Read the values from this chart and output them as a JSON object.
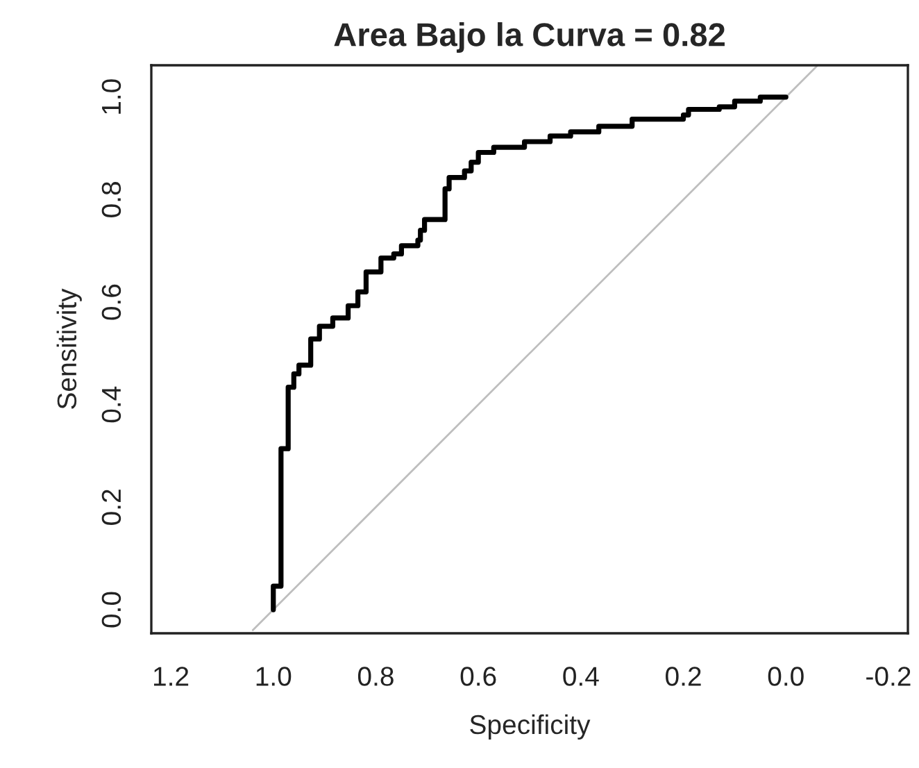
{
  "chart_data": {
    "type": "line",
    "title": "Area Bajo la Curva = 0.82",
    "xlabel": "Specificity",
    "ylabel": "Sensitivity",
    "xlim": [
      1.238,
      -0.238
    ],
    "xticks": [
      1.2,
      {
        "value": 1,
        "label": "1.0"
      },
      0.8,
      0.6,
      0.4,
      0.2,
      {
        "value": 0,
        "label": "0.0"
      },
      -0.2
    ],
    "ylim": [
      -0.046,
      1.062
    ],
    "yticks": [
      {
        "value": 0,
        "label": "0.0"
      },
      0.2,
      0.4,
      0.6,
      0.8,
      {
        "value": 1,
        "label": "1.0"
      }
    ],
    "grid": false,
    "legend": false,
    "series": [
      {
        "type": "line",
        "color": "#bebebe",
        "x": [
          1.04,
          -0.06
        ],
        "values": [
          -0.04,
          1.06
        ]
      },
      {
        "color": "#000000",
        "x": [
          1.0,
          1.0,
          0.985,
          0.985,
          0.971,
          0.971,
          0.96,
          0.96,
          0.95,
          0.95,
          0.927,
          0.927,
          0.91,
          0.91,
          0.884,
          0.884,
          0.854,
          0.854,
          0.835,
          0.835,
          0.819,
          0.819,
          0.79,
          0.79,
          0.765,
          0.765,
          0.75,
          0.75,
          0.718,
          0.718,
          0.713,
          0.713,
          0.705,
          0.705,
          0.665,
          0.665,
          0.657,
          0.657,
          0.627,
          0.627,
          0.614,
          0.614,
          0.6,
          0.6,
          0.57,
          0.57,
          0.51,
          0.51,
          0.46,
          0.46,
          0.42,
          0.42,
          0.365,
          0.365,
          0.3,
          0.3,
          0.2,
          0.2,
          0.19,
          0.19,
          0.13,
          0.13,
          0.1,
          0.1,
          0.05,
          0.05,
          0.0
        ],
        "values": [
          0.0,
          0.046,
          0.046,
          0.314,
          0.314,
          0.434,
          0.434,
          0.46,
          0.46,
          0.477,
          0.477,
          0.528,
          0.528,
          0.553,
          0.553,
          0.569,
          0.569,
          0.593,
          0.593,
          0.62,
          0.62,
          0.659,
          0.659,
          0.686,
          0.686,
          0.694,
          0.694,
          0.71,
          0.71,
          0.721,
          0.721,
          0.74,
          0.74,
          0.761,
          0.761,
          0.821,
          0.821,
          0.843,
          0.843,
          0.856,
          0.856,
          0.873,
          0.873,
          0.892,
          0.892,
          0.902,
          0.902,
          0.913,
          0.913,
          0.924,
          0.924,
          0.932,
          0.932,
          0.943,
          0.943,
          0.957,
          0.957,
          0.965,
          0.965,
          0.976,
          0.976,
          0.981,
          0.981,
          0.992,
          0.992,
          1.0,
          1.0
        ]
      }
    ]
  }
}
